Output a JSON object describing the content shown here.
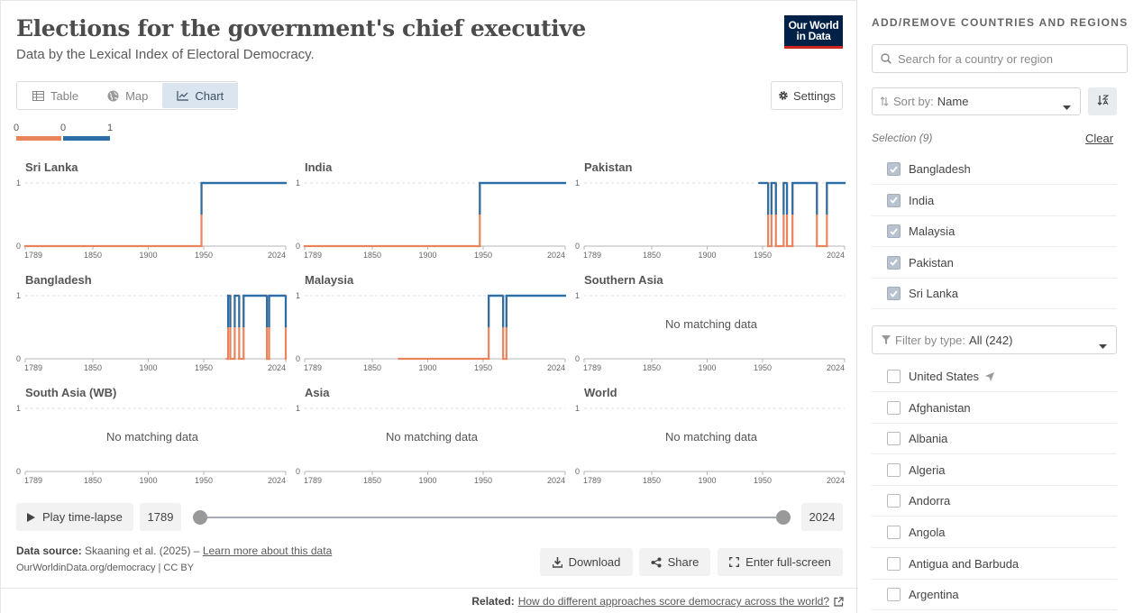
{
  "header": {
    "title": "Elections for the government's chief executive",
    "subtitle": "Data by the Lexical Index of Electoral Democracy.",
    "logo_line1": "Our World",
    "logo_line2": "in Data"
  },
  "tabs": [
    {
      "label": "Table",
      "icon": "table-icon",
      "active": false
    },
    {
      "label": "Map",
      "icon": "globe-icon",
      "active": false
    },
    {
      "label": "Chart",
      "icon": "line-chart-icon",
      "active": true
    }
  ],
  "settings_label": "Settings",
  "legend": {
    "bins": [
      {
        "from": "0",
        "to": "0",
        "color": "#e9845d"
      },
      {
        "from": "0",
        "to": "1",
        "color": "#2c6ea6"
      }
    ]
  },
  "chart_data": {
    "type": "line",
    "x_ticks": [
      1789,
      1850,
      1900,
      1950,
      2024
    ],
    "xlim": [
      1789,
      2024
    ],
    "y_ticks": [
      0,
      1
    ],
    "ylim": [
      0,
      1
    ],
    "grid": "horizontal dashed",
    "colors": {
      "low": "#e9845d",
      "high": "#2c6ea6"
    },
    "no_data_label": "No matching data",
    "facets": [
      {
        "name": "Sri Lanka",
        "series": [
          [
            1789,
            0
          ],
          [
            1948,
            0
          ],
          [
            1948,
            1
          ],
          [
            2024,
            1
          ]
        ]
      },
      {
        "name": "India",
        "series": [
          [
            1789,
            0
          ],
          [
            1947,
            0
          ],
          [
            1947,
            1
          ],
          [
            2024,
            1
          ]
        ]
      },
      {
        "name": "Pakistan",
        "series": [
          [
            1947,
            1
          ],
          [
            1955,
            1
          ],
          [
            1955,
            0
          ],
          [
            1958,
            0
          ],
          [
            1958,
            1
          ],
          [
            1962,
            1
          ],
          [
            1962,
            0
          ],
          [
            1969,
            0
          ],
          [
            1969,
            1
          ],
          [
            1972,
            1
          ],
          [
            1972,
            0
          ],
          [
            1977,
            0
          ],
          [
            1977,
            1
          ],
          [
            1999,
            1
          ],
          [
            1999,
            0
          ],
          [
            2008,
            0
          ],
          [
            2008,
            1
          ],
          [
            2024,
            1
          ]
        ]
      },
      {
        "name": "Bangladesh",
        "series": [
          [
            1971,
            0
          ],
          [
            1972,
            0
          ],
          [
            1972,
            1
          ],
          [
            1974,
            1
          ],
          [
            1974,
            0
          ],
          [
            1978,
            0
          ],
          [
            1978,
            1
          ],
          [
            1982,
            1
          ],
          [
            1982,
            0
          ],
          [
            1986,
            0
          ],
          [
            1986,
            1
          ],
          [
            2007,
            1
          ],
          [
            2007,
            0
          ],
          [
            2009,
            0
          ],
          [
            2009,
            1
          ],
          [
            2024,
            1
          ],
          [
            2024,
            0
          ]
        ]
      },
      {
        "name": "Malaysia",
        "series": [
          [
            1874,
            0
          ],
          [
            1955,
            0
          ],
          [
            1955,
            1
          ],
          [
            1968,
            1
          ],
          [
            1968,
            0
          ],
          [
            1971,
            0
          ],
          [
            1971,
            1
          ],
          [
            2024,
            1
          ]
        ]
      },
      {
        "name": "Southern Asia",
        "series": []
      },
      {
        "name": "South Asia (WB)",
        "series": []
      },
      {
        "name": "Asia",
        "series": []
      },
      {
        "name": "World",
        "series": []
      }
    ]
  },
  "timeline": {
    "play_label": "Play time-lapse",
    "start_year": "1789",
    "end_year": "2024"
  },
  "footer": {
    "source_label": "Data source:",
    "source_text": "Skaaning et al. (2025) –",
    "learn_more": "Learn more about this data",
    "license": "OurWorldinData.org/democracy | CC BY",
    "download_label": "Download",
    "share_label": "Share",
    "fullscreen_label": "Enter full-screen",
    "related_label": "Related:",
    "related_link": "How do different approaches score democracy across the world?"
  },
  "sidebar": {
    "heading": "ADD/REMOVE COUNTRIES AND REGIONS",
    "search_placeholder": "Search for a country or region",
    "sort_label": "Sort by:",
    "sort_value": "Name",
    "selection_label": "Selection (9)",
    "clear_label": "Clear",
    "selected": [
      {
        "name": "Bangladesh"
      },
      {
        "name": "India"
      },
      {
        "name": "Malaysia"
      },
      {
        "name": "Pakistan"
      },
      {
        "name": "Sri Lanka"
      }
    ],
    "filter_label": "Filter by type:",
    "filter_value": "All (242)",
    "available": [
      {
        "name": "United States",
        "located": true
      },
      {
        "name": "Afghanistan"
      },
      {
        "name": "Albania"
      },
      {
        "name": "Algeria"
      },
      {
        "name": "Andorra"
      },
      {
        "name": "Angola"
      },
      {
        "name": "Antigua and Barbuda"
      },
      {
        "name": "Argentina"
      }
    ]
  }
}
